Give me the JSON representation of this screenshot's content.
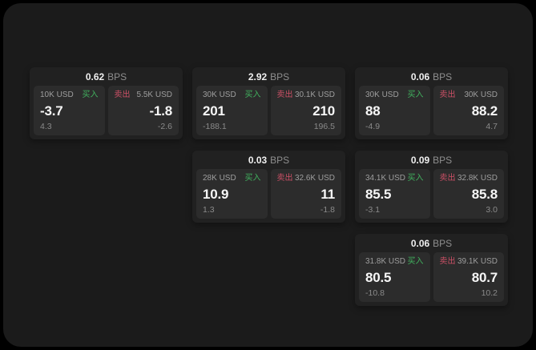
{
  "colors": {
    "page_background": "#000000",
    "surface_background": "#1b1b1b",
    "card_background": "#212121",
    "panel_background": "#2c2c2c",
    "value_text": "#f7f7f7",
    "label_text": "#9e9e9e",
    "sub_text": "#8a8a8a",
    "buy_green": "#41b15e",
    "sell_red": "#cc5066"
  },
  "labels": {
    "bps": "BPS",
    "buy": "买入",
    "sell": "卖出"
  },
  "cards": [
    {
      "bps": "0.62",
      "buy": {
        "amount": "10K USD",
        "value": "-3.7",
        "sub": "4.3"
      },
      "sell": {
        "amount": "5.5K USD",
        "value": "-1.8",
        "sub": "-2.6"
      }
    },
    {
      "bps": "2.92",
      "buy": {
        "amount": "30K USD",
        "value": "201",
        "sub": "-188.1"
      },
      "sell": {
        "amount": "30.1K USD",
        "value": "210",
        "sub": "196.5"
      }
    },
    {
      "bps": "0.06",
      "buy": {
        "amount": "30K USD",
        "value": "88",
        "sub": "-4.9"
      },
      "sell": {
        "amount": "30K USD",
        "value": "88.2",
        "sub": "4.7"
      }
    },
    {
      "bps": "0.03",
      "buy": {
        "amount": "28K USD",
        "value": "10.9",
        "sub": "1.3"
      },
      "sell": {
        "amount": "32.6K USD",
        "value": "11",
        "sub": "-1.8"
      }
    },
    {
      "bps": "0.09",
      "buy": {
        "amount": "34.1K USD",
        "value": "85.5",
        "sub": "-3.1"
      },
      "sell": {
        "amount": "32.8K USD",
        "value": "85.8",
        "sub": "3.0"
      }
    },
    {
      "bps": "0.06",
      "buy": {
        "amount": "31.8K USD",
        "value": "80.5",
        "sub": "-10.8"
      },
      "sell": {
        "amount": "39.1K USD",
        "value": "80.7",
        "sub": "10.2"
      }
    }
  ]
}
